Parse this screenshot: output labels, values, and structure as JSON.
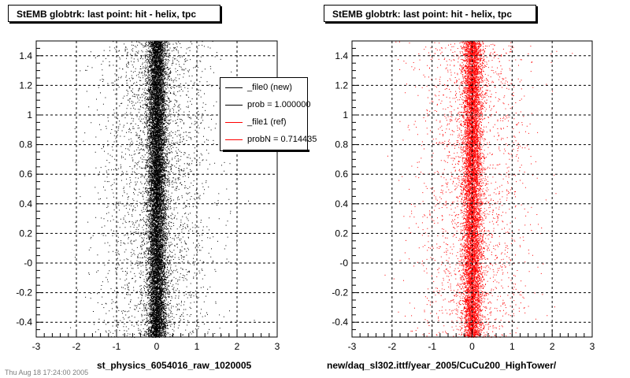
{
  "chart_data": [
    {
      "type": "scatter",
      "title": "StEMB globtrk: last point: hit - helix, tpc",
      "xlabel": "st_physics_6054016_raw_1020005",
      "ylabel": "",
      "xlim": [
        -3,
        3
      ],
      "ylim": [
        -0.5,
        1.5
      ],
      "xticks": [
        "-3",
        "-2",
        "-1",
        "0",
        "1",
        "2",
        "3"
      ],
      "yticks": [
        "-0.4",
        "-0.2",
        "-0",
        "0.2",
        "0.4",
        "0.6",
        "0.8",
        "1",
        "1.2",
        "1.4"
      ],
      "grid": true,
      "marker_color": "#000000",
      "distribution": {
        "x_center": 0.0,
        "x_core_sigma": 0.12,
        "x_tail_sigma": 0.7,
        "y_uniform": [
          -0.5,
          1.5
        ],
        "points": 14000
      },
      "legend": {
        "placement": "top-right",
        "entries": [
          {
            "label": "_file0 (new)",
            "color": "#000000"
          },
          {
            "label": "prob = 1.000000",
            "color": "#000000"
          },
          {
            "label": "_file1 (ref)",
            "color": "#ff0000"
          },
          {
            "label": "probN = 0.714435",
            "color": "#ff0000"
          }
        ]
      }
    },
    {
      "type": "scatter",
      "title": "StEMB globtrk: last point: hit - helix, tpc",
      "xlabel": "new/daq_sl302.ittf/year_2005/CuCu200_HighTower/",
      "ylabel": "",
      "xlim": [
        -3,
        3
      ],
      "ylim": [
        -0.5,
        1.5
      ],
      "xticks": [
        "-3",
        "-2",
        "-1",
        "0",
        "1",
        "2",
        "3"
      ],
      "yticks": [
        "-0.4",
        "-0.2",
        "-0",
        "0.2",
        "0.4",
        "0.6",
        "0.8",
        "1",
        "1.2",
        "1.4"
      ],
      "grid": true,
      "marker_color": "#ff0000",
      "distribution": {
        "x_center": 0.0,
        "x_core_sigma": 0.12,
        "x_tail_sigma": 0.7,
        "y_uniform": [
          -0.5,
          1.5
        ],
        "points": 11000
      }
    }
  ],
  "footer": "Thu Aug 18 17:24:00 2005"
}
